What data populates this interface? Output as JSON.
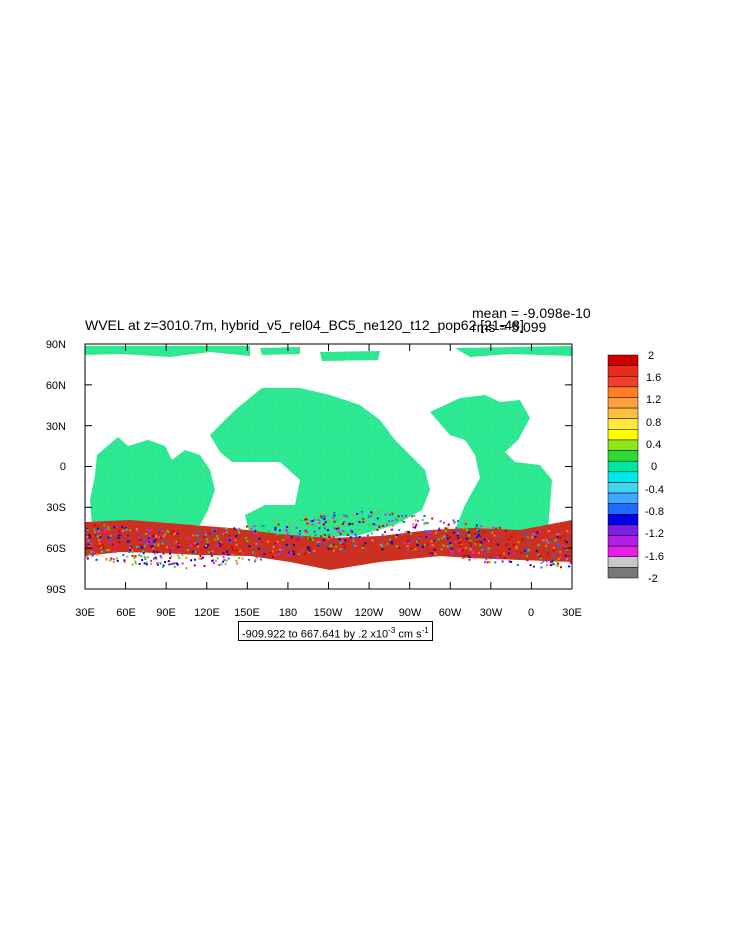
{
  "title": "WVEL at z=3010.7m, hybrid_v5_rel04_BC5_ne120_t12_pop62 [21-48]",
  "stats": {
    "mean": "mean = -9.098e-10",
    "rms": "rms = 5.099"
  },
  "contour_info": {
    "prefix": "-909.922 to 667.641 by .2 x10",
    "exponent": "-3",
    "units": " cm s",
    "units_exponent": "-1"
  },
  "axes": {
    "x_labels": [
      "30E",
      "60E",
      "90E",
      "120E",
      "150E",
      "180",
      "150W",
      "120W",
      "90W",
      "60W",
      "30W",
      "0",
      "30E"
    ],
    "y_labels": [
      "90N",
      "60N",
      "30N",
      "0",
      "30S",
      "60S",
      "90S"
    ]
  },
  "colorbar": {
    "labels": [
      "2",
      "1.6",
      "1.2",
      "0.8",
      "0.4",
      "0",
      "-0.4",
      "-0.8",
      "-1.2",
      "-1.6",
      "-2"
    ],
    "colors": [
      "#cc0000",
      "#e82b1f",
      "#f0402a",
      "#ff7f1f",
      "#ff9f3f",
      "#ffbf3f",
      "#ffe840",
      "#ffff00",
      "#8ce61a",
      "#2fdb2f",
      "#00e6a0",
      "#00e8e8",
      "#3fd4f0",
      "#3fa8ff",
      "#1f6bff",
      "#0000e6",
      "#7a1fe6",
      "#b01fe6",
      "#e61fe6",
      "#c8c8c8",
      "#787878"
    ]
  },
  "map_colors": {
    "ocean_base": "#30e890",
    "ocean_alt": "#00e8e8",
    "southern_speckle": [
      "#cc0000",
      "#ff7f1f",
      "#1f6bff",
      "#0000e6",
      "#e61fe6",
      "#2fdb2f"
    ]
  }
}
